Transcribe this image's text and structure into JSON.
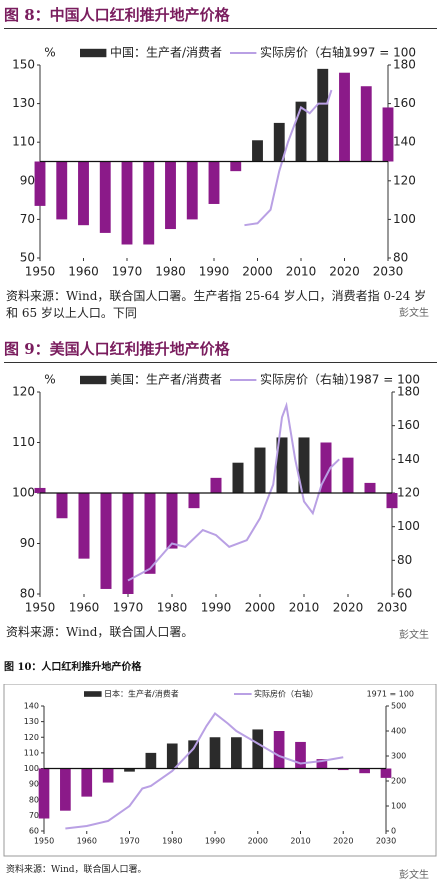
{
  "chart_data": [
    {
      "type": "bar",
      "title": "图 8：中国人口红利推升地产价格",
      "y_label": "%",
      "base_note": "1997 = 100",
      "source": "资料来源：Wind，联合国人口署。生产者指 25-64 岁人口，消费者指 0-24 岁和 65 岁以上人口。下同",
      "watermark": "彭文生",
      "baseline": 100,
      "xlim": [
        1950,
        2030
      ],
      "xticks": [
        1950,
        1960,
        1970,
        1980,
        1990,
        2000,
        2010,
        2020,
        2030
      ],
      "ylim": [
        50,
        150
      ],
      "yticks": [
        50,
        70,
        90,
        110,
        130,
        150
      ],
      "y2lim": [
        80,
        180
      ],
      "y2ticks": [
        80,
        100,
        120,
        140,
        160,
        180
      ],
      "series": [
        {
          "name": "中国：生产者/消费者",
          "type": "bar",
          "color": "#8b1a89",
          "x": [
            1950,
            1955,
            1960,
            1965,
            1970,
            1975,
            1980,
            1985,
            1990,
            1995,
            2000,
            2005,
            2010,
            2015,
            2020,
            2025,
            2030
          ],
          "values": [
            77,
            70,
            67,
            63,
            57,
            57,
            65,
            70,
            78,
            95,
            111,
            120,
            131,
            148,
            146,
            139,
            128
          ],
          "colors": [
            "#8b1a89",
            "#8b1a89",
            "#8b1a89",
            "#8b1a89",
            "#8b1a89",
            "#8b1a89",
            "#8b1a89",
            "#8b1a89",
            "#8b1a89",
            "#8b1a89",
            "#2b2b2b",
            "#2b2b2b",
            "#2b2b2b",
            "#2b2b2b",
            "#8b1a89",
            "#8b1a89",
            "#8b1a89"
          ]
        },
        {
          "name": "实际房价（右轴）",
          "type": "line",
          "axis": "y2",
          "color": "#b9a0e4",
          "x": [
            1997,
            2000,
            2003,
            2005,
            2007,
            2010,
            2012,
            2014,
            2016,
            2017
          ],
          "values": [
            97,
            98,
            105,
            125,
            140,
            158,
            155,
            160,
            160,
            167
          ]
        }
      ]
    },
    {
      "type": "bar",
      "title": "图 9：美国人口红利推升地产价格",
      "y_label": "%",
      "base_note": "1987 = 100",
      "source": "资料来源：Wind，联合国人口署。",
      "watermark": "彭文生",
      "baseline": 100,
      "xlim": [
        1950,
        2030
      ],
      "xticks": [
        1950,
        1960,
        1970,
        1980,
        1990,
        2000,
        2010,
        2020,
        2030
      ],
      "ylim": [
        80,
        120
      ],
      "yticks": [
        80,
        90,
        100,
        110,
        120
      ],
      "y2lim": [
        60,
        180
      ],
      "y2ticks": [
        60,
        80,
        100,
        120,
        140,
        160,
        180
      ],
      "series": [
        {
          "name": "美国：生产者/消费者",
          "type": "bar",
          "color": "#8b1a89",
          "x": [
            1950,
            1955,
            1960,
            1965,
            1970,
            1975,
            1980,
            1985,
            1990,
            1995,
            2000,
            2005,
            2010,
            2015,
            2020,
            2025,
            2030
          ],
          "values": [
            101,
            95,
            87,
            81,
            80,
            84,
            89,
            97,
            103,
            106,
            109,
            111,
            111,
            110,
            107,
            102,
            97
          ],
          "colors": [
            "#8b1a89",
            "#8b1a89",
            "#8b1a89",
            "#8b1a89",
            "#8b1a89",
            "#8b1a89",
            "#8b1a89",
            "#8b1a89",
            "#8b1a89",
            "#2b2b2b",
            "#2b2b2b",
            "#2b2b2b",
            "#2b2b2b",
            "#8b1a89",
            "#8b1a89",
            "#8b1a89",
            "#8b1a89"
          ]
        },
        {
          "name": "实际房价（右轴）",
          "type": "line",
          "axis": "y2",
          "color": "#b9a0e4",
          "x": [
            1970,
            1975,
            1980,
            1983,
            1987,
            1990,
            1993,
            1997,
            2000,
            2003,
            2005,
            2006,
            2008,
            2010,
            2012,
            2014,
            2016,
            2018
          ],
          "values": [
            68,
            75,
            90,
            88,
            98,
            95,
            88,
            92,
            105,
            125,
            165,
            172,
            140,
            115,
            108,
            125,
            135,
            140
          ]
        }
      ]
    },
    {
      "type": "bar",
      "title": "图 10：人口红利推升地产价格",
      "base_note": "1971 = 100",
      "source": "资料来源：Wind，联合国人口署。",
      "watermark": "彭文生",
      "baseline": 100,
      "xlim": [
        1950,
        2030
      ],
      "xticks": [
        1950,
        1960,
        1970,
        1980,
        1990,
        2000,
        2010,
        2020,
        2030
      ],
      "ylim": [
        60,
        140
      ],
      "yticks": [
        60,
        70,
        80,
        90,
        100,
        110,
        120,
        130,
        140
      ],
      "y2lim": [
        0,
        500
      ],
      "y2ticks": [
        0,
        100,
        200,
        300,
        400,
        500
      ],
      "series": [
        {
          "name": "日本：生产者/消费者",
          "type": "bar",
          "color": "#8b1a89",
          "x": [
            1950,
            1955,
            1960,
            1965,
            1970,
            1975,
            1980,
            1985,
            1990,
            1995,
            2000,
            2005,
            2010,
            2015,
            2020,
            2025,
            2030
          ],
          "values": [
            68,
            73,
            82,
            91,
            98,
            110,
            116,
            118,
            120,
            120,
            125,
            124,
            117,
            106,
            99,
            97,
            94
          ],
          "colors": [
            "#8b1a89",
            "#8b1a89",
            "#8b1a89",
            "#8b1a89",
            "#2b2b2b",
            "#2b2b2b",
            "#2b2b2b",
            "#2b2b2b",
            "#2b2b2b",
            "#2b2b2b",
            "#2b2b2b",
            "#8b1a89",
            "#8b1a89",
            "#8b1a89",
            "#8b1a89",
            "#8b1a89",
            "#8b1a89"
          ]
        },
        {
          "name": "实际房价（右轴）",
          "type": "line",
          "axis": "y2",
          "color": "#b9a0e4",
          "x": [
            1955,
            1960,
            1965,
            1970,
            1973,
            1975,
            1980,
            1985,
            1988,
            1990,
            1993,
            1995,
            2000,
            2005,
            2010,
            2015,
            2020
          ],
          "values": [
            10,
            20,
            40,
            100,
            170,
            180,
            240,
            330,
            420,
            470,
            430,
            400,
            350,
            300,
            270,
            280,
            295
          ]
        }
      ]
    }
  ]
}
